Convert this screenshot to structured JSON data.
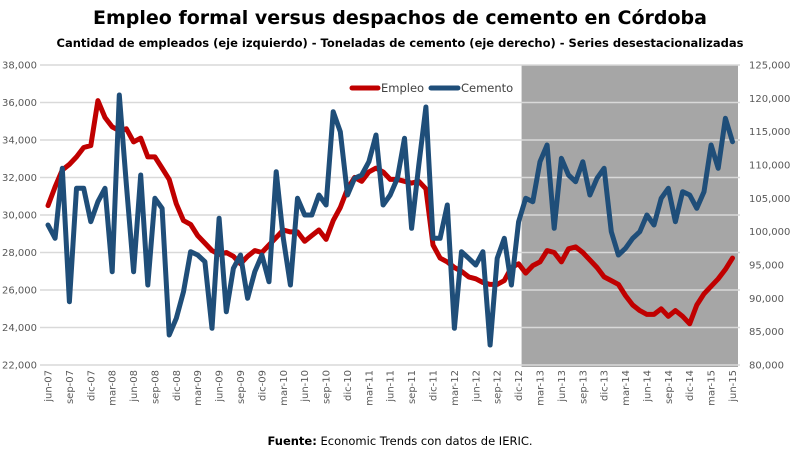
{
  "chart_data": {
    "type": "line",
    "title": "Empleo formal versus despachos de cemento en Córdoba",
    "subtitle": "Cantidad de empleados (eje izquierdo) - Toneladas de cemento (eje derecho) - Series desestacionalizadas",
    "source_label": "Fuente:",
    "source_text": " Economic Trends con datos de IERIC.",
    "y_left": {
      "min": 22000,
      "max": 38000,
      "ticks": [
        "22,000",
        "24,000",
        "26,000",
        "28,000",
        "30,000",
        "32,000",
        "34,000",
        "36,000",
        "38,000"
      ]
    },
    "y_right": {
      "min": 80000,
      "max": 125000,
      "ticks": [
        "80,000",
        "85,000",
        "90,000",
        "95,000",
        "100,000",
        "105,000",
        "110,000",
        "115,000",
        "120,000",
        "125,000"
      ]
    },
    "x_tick_labels": [
      "jun-07",
      "sep-07",
      "dic-07",
      "mar-08",
      "jun-08",
      "sep-08",
      "dic-08",
      "mar-09",
      "jun-09",
      "sep-09",
      "dic-09",
      "mar-10",
      "jun-10",
      "sep-10",
      "dic-10",
      "mar-11",
      "jun-11",
      "sep-11",
      "dic-11",
      "mar-12",
      "jun-12",
      "sep-12",
      "dic-12",
      "mar-13",
      "jun-13",
      "sep-13",
      "dic-13",
      "mar-14",
      "jun-14",
      "sep-14",
      "dic-14",
      "mar-15",
      "jun-15"
    ],
    "shaded_region_start": "dic-12",
    "legend": {
      "position": "top-center",
      "entries": [
        "Empleo",
        "Cemento"
      ]
    },
    "series": [
      {
        "name": "Empleo",
        "axis": "left",
        "color": "#c00000",
        "values": [
          30500,
          31500,
          32400,
          32700,
          33100,
          33600,
          33700,
          36100,
          35200,
          34700,
          34500,
          34600,
          33900,
          34100,
          33100,
          33100,
          32500,
          31900,
          30600,
          29700,
          29500,
          28900,
          28500,
          28100,
          27900,
          28000,
          27800,
          27400,
          27800,
          28100,
          28000,
          28400,
          28800,
          29200,
          29100,
          29100,
          28600,
          28900,
          29200,
          28700,
          29700,
          30400,
          31400,
          32000,
          31800,
          32300,
          32500,
          32300,
          31900,
          31900,
          31800,
          31700,
          31800,
          31400,
          28400,
          27700,
          27500,
          27200,
          27000,
          26700,
          26600,
          26400,
          26300,
          26300,
          26500,
          27200,
          27400,
          26900,
          27300,
          27500,
          28100,
          28000,
          27500,
          28200,
          28300,
          28000,
          27600,
          27200,
          26700,
          26500,
          26300,
          25700,
          25200,
          24900,
          24700,
          24700,
          25000,
          24600,
          24900,
          24600,
          24200,
          25200,
          25800,
          26200,
          26600,
          27100,
          27700
        ]
      },
      {
        "name": "Cemento",
        "axis": "right",
        "color": "#1f4e79",
        "values": [
          101000,
          99000,
          109500,
          89500,
          106500,
          106500,
          101500,
          104500,
          106500,
          94000,
          120500,
          107000,
          94000,
          108500,
          92000,
          105000,
          103500,
          84500,
          87000,
          91000,
          97000,
          96500,
          95500,
          85500,
          102000,
          88000,
          94500,
          96500,
          90000,
          94000,
          96500,
          92500,
          109000,
          99000,
          92000,
          105000,
          102500,
          102500,
          105500,
          104000,
          118000,
          115000,
          105500,
          108000,
          108500,
          110500,
          114500,
          104000,
          105500,
          108000,
          114000,
          100500,
          110000,
          118700,
          99000,
          99000,
          104000,
          85500,
          97000,
          96000,
          95000,
          97000,
          83000,
          96000,
          99000,
          92000,
          101500,
          105000,
          104500,
          110500,
          113000,
          100500,
          111000,
          108500,
          107500,
          110500,
          105500,
          108000,
          109500,
          100000,
          96500,
          97500,
          99000,
          100000,
          102500,
          101000,
          105000,
          106500,
          101500,
          106000,
          105500,
          103500,
          106000,
          113000,
          109500,
          117000,
          113500
        ]
      }
    ]
  }
}
